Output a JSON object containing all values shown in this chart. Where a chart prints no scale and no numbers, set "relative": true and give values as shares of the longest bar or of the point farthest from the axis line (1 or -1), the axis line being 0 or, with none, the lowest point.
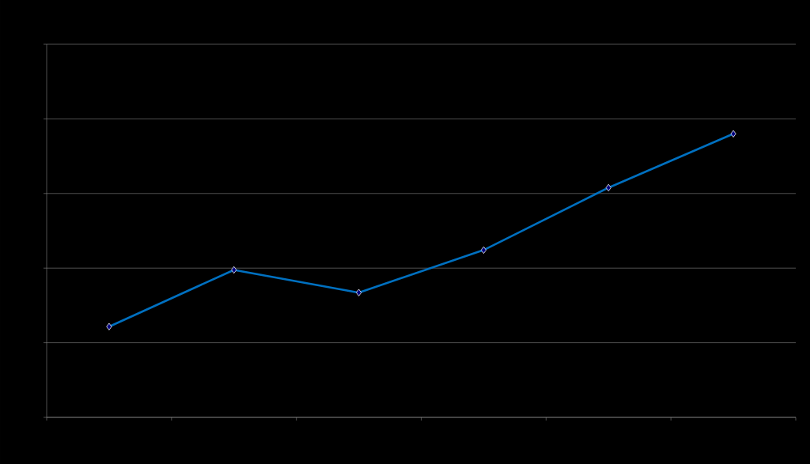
{
  "chart_data": {
    "type": "line",
    "relative": true,
    "categories": [
      null,
      null,
      null,
      null,
      null,
      null
    ],
    "values": [
      0.32,
      0.52,
      0.44,
      0.59,
      0.81,
      1
    ],
    "color": "#0070c0",
    "marker": "diamond",
    "line_style": "solid",
    "grid": "y"
  }
}
